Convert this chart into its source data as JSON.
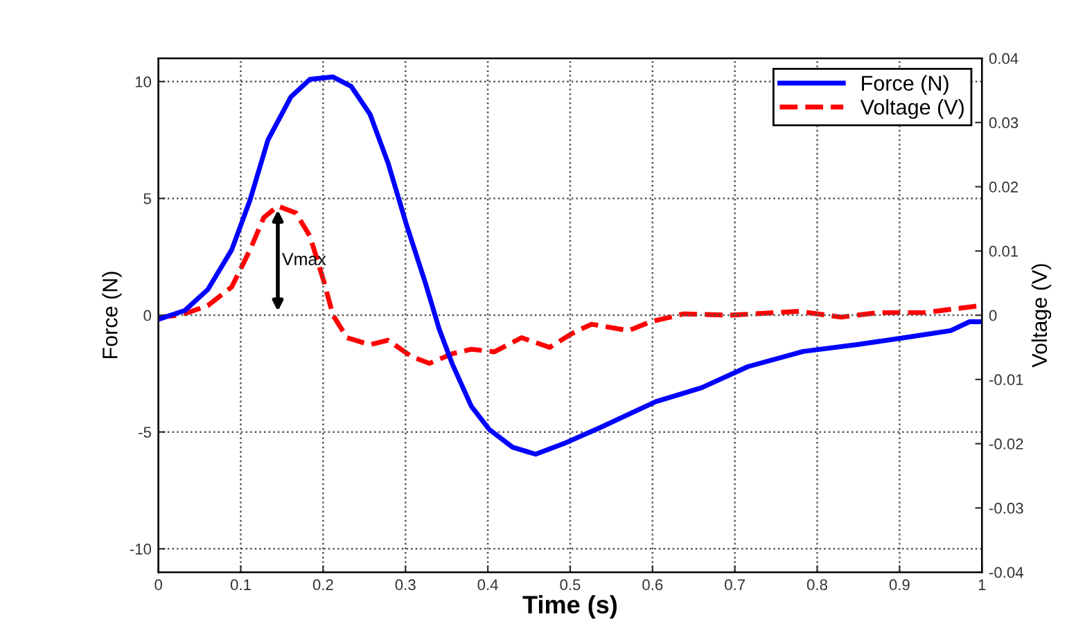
{
  "chart_data": {
    "type": "line",
    "xlabel": "Time (s)",
    "ylabel": "Force (N)",
    "y2label": "Voltage (V)",
    "xlim": [
      0,
      1
    ],
    "xticks": [
      0,
      0.1,
      0.2,
      0.3,
      0.4,
      0.5,
      0.6,
      0.7,
      0.8,
      0.9,
      1
    ],
    "ylim": [
      -11,
      11
    ],
    "yticks": [
      -10,
      -5,
      0,
      5,
      10
    ],
    "y2lim": [
      -0.04,
      0.04
    ],
    "y2ticks": [
      -0.04,
      -0.03,
      -0.02,
      -0.01,
      0,
      0.01,
      0.02,
      0.03,
      0.04
    ],
    "grid": true,
    "legend": "top right",
    "annotations": [
      "Vmax"
    ],
    "series": [
      {
        "name": "Force (N)",
        "color": "#0000ff",
        "line_style": "solid",
        "x": [
          0,
          0.032,
          0.06,
          0.089,
          0.111,
          0.133,
          0.161,
          0.184,
          0.212,
          0.234,
          0.257,
          0.279,
          0.301,
          0.324,
          0.341,
          0.357,
          0.38,
          0.402,
          0.43,
          0.458,
          0.492,
          0.537,
          0.604,
          0.66,
          0.716,
          0.783,
          0.85,
          0.906,
          0.962,
          0.985,
          0.998
        ],
        "values": [
          -0.18,
          0.2,
          1.1,
          2.8,
          4.9,
          7.5,
          9.35,
          10.1,
          10.2,
          9.8,
          8.6,
          6.5,
          3.9,
          1.4,
          -0.6,
          -2.1,
          -3.9,
          -4.9,
          -5.65,
          -5.95,
          -5.5,
          -4.8,
          -3.7,
          -3.1,
          -2.2,
          -1.55,
          -1.25,
          -0.96,
          -0.66,
          -0.28,
          -0.28
        ]
      },
      {
        "name": "Voltage (V)",
        "color": "#ff0000",
        "line_style": "dashed",
        "axis": "y2",
        "x": [
          0,
          0.027,
          0.06,
          0.089,
          0.111,
          0.128,
          0.145,
          0.167,
          0.184,
          0.201,
          0.212,
          0.229,
          0.257,
          0.279,
          0.307,
          0.329,
          0.357,
          0.38,
          0.408,
          0.441,
          0.475,
          0.503,
          0.526,
          0.571,
          0.598,
          0.638,
          0.694,
          0.778,
          0.829,
          0.874,
          0.93,
          0.999
        ],
        "values": [
          -0.0003,
          0,
          0.0015,
          0.0044,
          0.0101,
          0.0152,
          0.017,
          0.0159,
          0.0123,
          0.0052,
          0,
          -0.0035,
          -0.0046,
          -0.0039,
          -0.0064,
          -0.0075,
          -0.006,
          -0.0053,
          -0.0057,
          -0.0035,
          -0.005,
          -0.0028,
          -0.0014,
          -0.0024,
          -0.001,
          0.0002,
          0,
          0.0006,
          -0.0003,
          0.0004,
          0.0004,
          0.0015
        ]
      }
    ]
  }
}
